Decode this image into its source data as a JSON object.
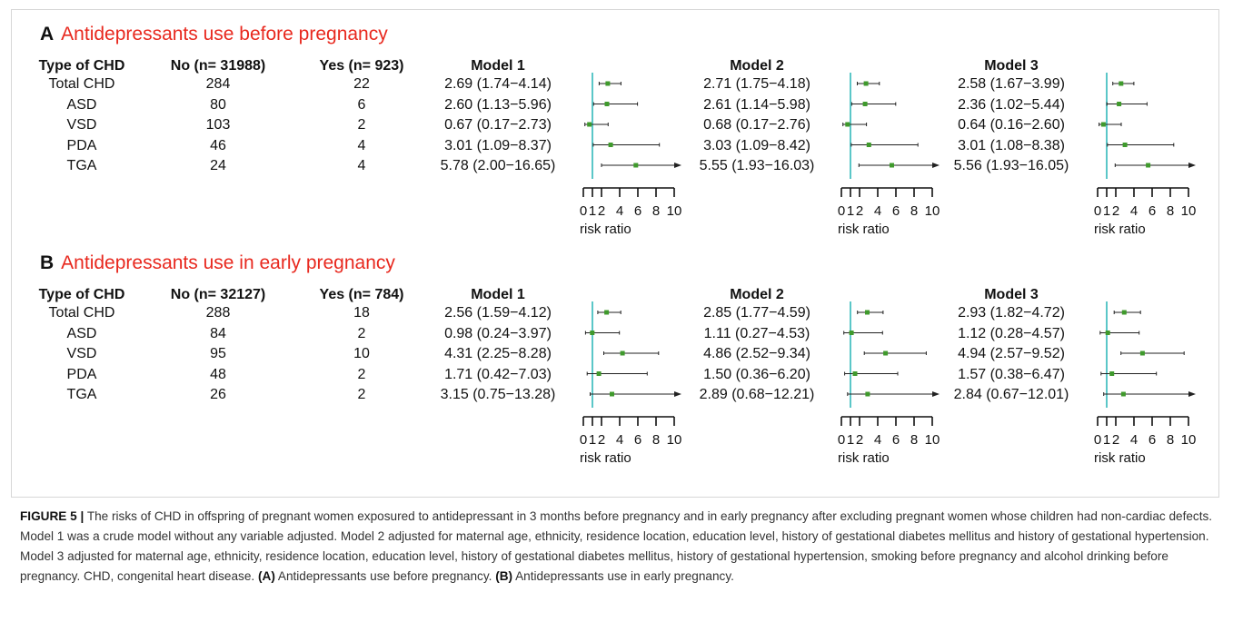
{
  "panels": [
    {
      "letter": "A",
      "title": "Antidepressants use before pregnancy",
      "headers": {
        "type": "Type of CHD",
        "no": "No (n= 31988)",
        "yes": "Yes (n= 923)"
      },
      "rows": [
        {
          "type": "Total CHD",
          "no": "284",
          "yes": "22"
        },
        {
          "type": "ASD",
          "no": "80",
          "yes": "6"
        },
        {
          "type": "VSD",
          "no": "103",
          "yes": "2"
        },
        {
          "type": "PDA",
          "no": "46",
          "yes": "4"
        },
        {
          "type": "TGA",
          "no": "24",
          "yes": "4"
        }
      ],
      "models": [
        {
          "name": "Model 1",
          "ci_text": [
            "2.69 (1.74−4.14)",
            "2.60 (1.13−5.96)",
            "0.67 (0.17−2.73)",
            "3.01 (1.09−8.37)",
            "5.78 (2.00−16.65)"
          ]
        },
        {
          "name": "Model 2",
          "ci_text": [
            "2.71 (1.75−4.18)",
            "2.61 (1.14−5.98)",
            "0.68 (0.17−2.76)",
            "3.03 (1.09−8.42)",
            "5.55 (1.93−16.03)"
          ]
        },
        {
          "name": "Model 3",
          "ci_text": [
            "2.58 (1.67−3.99)",
            "2.36 (1.02−5.44)",
            "0.64 (0.16−2.60)",
            "3.01 (1.08−8.38)",
            "5.56 (1.93−16.05)"
          ]
        }
      ]
    },
    {
      "letter": "B",
      "title": "Antidepressants use in early pregnancy",
      "headers": {
        "type": "Type of CHD",
        "no": "No (n= 32127)",
        "yes": "Yes (n= 784)"
      },
      "rows": [
        {
          "type": "Total CHD",
          "no": "288",
          "yes": "18"
        },
        {
          "type": "ASD",
          "no": "84",
          "yes": "2"
        },
        {
          "type": "VSD",
          "no": "95",
          "yes": "10"
        },
        {
          "type": "PDA",
          "no": "48",
          "yes": "2"
        },
        {
          "type": "TGA",
          "no": "26",
          "yes": "2"
        }
      ],
      "models": [
        {
          "name": "Model 1",
          "ci_text": [
            "2.56 (1.59−4.12)",
            "0.98 (0.24−3.97)",
            "4.31 (2.25−8.28)",
            "1.71 (0.42−7.03)",
            "3.15 (0.75−13.28)"
          ]
        },
        {
          "name": "Model 2",
          "ci_text": [
            "2.85 (1.77−4.59)",
            "1.11 (0.27−4.53)",
            "4.86 (2.52−9.34)",
            "1.50 (0.36−6.20)",
            "2.89 (0.68−12.21)"
          ]
        },
        {
          "name": "Model 3",
          "ci_text": [
            "2.93 (1.82−4.72)",
            "1.12 (0.28−4.57)",
            "4.94 (2.57−9.52)",
            "1.57 (0.38−6.47)",
            "2.84 (0.67−12.01)"
          ]
        }
      ]
    }
  ],
  "caption": {
    "label": "FIGURE 5 |",
    "text": "The risks of CHD in offspring of pregnant women exposured to antidepressant in 3 months before pregnancy and in early pregnancy after excluding pregnant women whose children had non-cardiac defects. Model 1 was a crude model without any variable adjusted. Model 2 adjusted for maternal age, ethnicity, residence location, education level, history of gestational diabetes mellitus and history of gestational hypertension. Model 3 adjusted for maternal age, ethnicity, residence location, education level, history of gestational diabetes mellitus, history of gestational hypertension, smoking before pregnancy and alcohol drinking before pregnancy. CHD, congenital heart disease.",
    "a_label": "(A)",
    "a_text": "Antidepressants use before pregnancy.",
    "b_label": "(B)",
    "b_text": "Antidepressants use in early pregnancy."
  },
  "colors": {
    "marker": "#3f9a2c",
    "reference_line": "#5bc7c8",
    "panel_title": "#e8281e"
  },
  "chart_data": [
    {
      "type": "forest",
      "panel": "A",
      "categories": [
        "Total CHD",
        "ASD",
        "VSD",
        "PDA",
        "TGA"
      ],
      "xlabel": "risk ratio",
      "xlim": [
        0,
        10
      ],
      "xticks": [
        0,
        1,
        2,
        4,
        6,
        8,
        10
      ],
      "tick_labels": [
        "0",
        "1",
        "2",
        "4",
        "6",
        "8",
        "10"
      ],
      "reference_value": 1,
      "series": [
        {
          "name": "Model 1",
          "estimate": [
            2.69,
            2.6,
            0.67,
            3.01,
            5.78
          ],
          "lower": [
            1.74,
            1.13,
            0.17,
            1.09,
            2.0
          ],
          "upper": [
            4.14,
            5.96,
            2.73,
            8.37,
            16.65
          ]
        },
        {
          "name": "Model 2",
          "estimate": [
            2.71,
            2.61,
            0.68,
            3.03,
            5.55
          ],
          "lower": [
            1.75,
            1.14,
            0.17,
            1.09,
            1.93
          ],
          "upper": [
            4.18,
            5.98,
            2.76,
            8.42,
            16.03
          ]
        },
        {
          "name": "Model 3",
          "estimate": [
            2.58,
            2.36,
            0.64,
            3.01,
            5.56
          ],
          "lower": [
            1.67,
            1.02,
            0.16,
            1.08,
            1.93
          ],
          "upper": [
            3.99,
            5.44,
            2.6,
            8.38,
            16.05
          ]
        }
      ]
    },
    {
      "type": "forest",
      "panel": "B",
      "categories": [
        "Total CHD",
        "ASD",
        "VSD",
        "PDA",
        "TGA"
      ],
      "xlabel": "risk ratio",
      "xlim": [
        0,
        10
      ],
      "xticks": [
        0,
        1,
        2,
        4,
        6,
        8,
        10
      ],
      "tick_labels": [
        "0",
        "1",
        "2",
        "4",
        "6",
        "8",
        "10"
      ],
      "reference_value": 1,
      "series": [
        {
          "name": "Model 1",
          "estimate": [
            2.56,
            0.98,
            4.31,
            1.71,
            3.15
          ],
          "lower": [
            1.59,
            0.24,
            2.25,
            0.42,
            0.75
          ],
          "upper": [
            4.12,
            3.97,
            8.28,
            7.03,
            13.28
          ]
        },
        {
          "name": "Model 2",
          "estimate": [
            2.85,
            1.11,
            4.86,
            1.5,
            2.89
          ],
          "lower": [
            1.77,
            0.27,
            2.52,
            0.36,
            0.68
          ],
          "upper": [
            4.59,
            4.53,
            9.34,
            6.2,
            12.21
          ]
        },
        {
          "name": "Model 3",
          "estimate": [
            2.93,
            1.12,
            4.94,
            1.57,
            2.84
          ],
          "lower": [
            1.82,
            0.28,
            2.57,
            0.38,
            0.67
          ],
          "upper": [
            4.72,
            4.57,
            9.52,
            6.47,
            12.01
          ]
        }
      ]
    }
  ]
}
